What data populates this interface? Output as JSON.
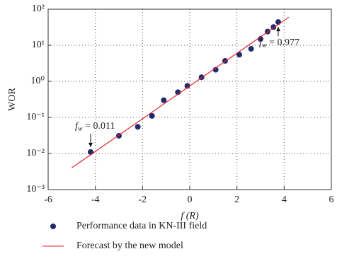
{
  "chart_data": {
    "type": "scatter",
    "xlabel": "f (R)",
    "ylabel": "WOR",
    "ylog": true,
    "grid": true,
    "xlim": [
      -6,
      6
    ],
    "xticks": [
      -6,
      -4,
      -2,
      0,
      2,
      4,
      6
    ],
    "ylim": [
      0.001,
      100
    ],
    "yticks": [
      {
        "value": 0.001,
        "label": "10⁻³"
      },
      {
        "value": 0.01,
        "label": "10⁻²"
      },
      {
        "value": 0.1,
        "label": "10⁻¹"
      },
      {
        "value": 1,
        "label": "10⁰"
      },
      {
        "value": 10,
        "label": "10¹"
      },
      {
        "value": 100,
        "label": "10²"
      }
    ],
    "series": [
      {
        "name": "Performance data in KN-III field",
        "type": "scatter",
        "color": "#1f2a6e",
        "x": [
          -4.2,
          -3.0,
          -2.2,
          -1.6,
          -1.1,
          -0.5,
          -0.1,
          0.5,
          1.1,
          1.5,
          2.1,
          2.6,
          3.0,
          3.3,
          3.55,
          3.75
        ],
        "values": [
          0.011,
          0.031,
          0.055,
          0.11,
          0.3,
          0.5,
          0.75,
          1.3,
          2.1,
          3.7,
          5.5,
          8,
          15,
          24,
          32,
          44
        ]
      },
      {
        "name": "Forecast by the new model",
        "type": "line",
        "color": "#e0262a",
        "x": [
          -5,
          4.2
        ],
        "values": [
          0.004,
          60
        ]
      }
    ],
    "annotations": [
      {
        "italic": "f",
        "sub": "w",
        "text": " = 0.011",
        "x": -4.2,
        "y": 0.011
      },
      {
        "italic": "f",
        "sub": "w",
        "text": " = 0.977",
        "x": 3.75,
        "y": 44
      }
    ]
  }
}
